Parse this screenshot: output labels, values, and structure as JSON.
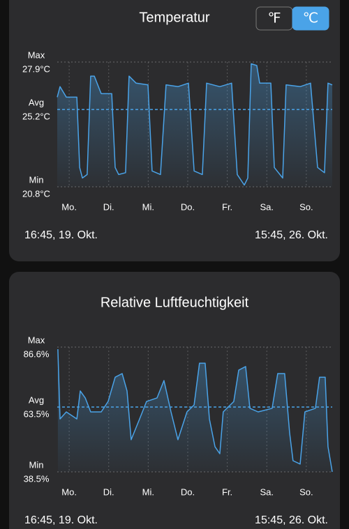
{
  "chart_data": [
    {
      "type": "line",
      "title": "Temperatur",
      "unit_options": [
        "℉",
        "℃"
      ],
      "selected_unit": 1,
      "color": "#4aa3e8",
      "x": [
        0,
        1.7,
        5.5,
        11.9,
        13.6,
        15.3,
        18.2,
        20.3,
        22.5,
        26.7,
        33.1,
        35.2,
        37.3,
        41.5,
        43.6,
        47.9,
        55.1,
        57.6,
        62.7,
        66.1,
        73.3,
        79.7,
        83.1,
        88.1,
        90.7,
        98.7,
        105.9,
        109.3,
        113.6,
        115.7,
        117.8,
        121.2,
        122.9,
        129.7,
        131.8,
        136.9,
        139,
        147.5,
        153.8,
        158.1,
        162.3,
        164.4,
        167
      ],
      "values": [
        25.9,
        26.5,
        25.9,
        25.9,
        21.9,
        21.3,
        21.5,
        27.1,
        27.1,
        26.1,
        26.1,
        21.9,
        21.5,
        21.6,
        27.1,
        26.7,
        26.6,
        21.7,
        21.5,
        26.6,
        26.5,
        26.7,
        21.7,
        21.5,
        26.7,
        26.5,
        26.7,
        21.5,
        20.9,
        21.3,
        27.8,
        27.7,
        26.7,
        26.7,
        21.9,
        21.3,
        26.6,
        26.5,
        26.7,
        21.9,
        21.6,
        26.7,
        26.6
      ],
      "xlim": [
        0,
        167
      ],
      "xticks": [
        {
          "value": 7.25,
          "label": "Mo."
        },
        {
          "value": 31.25,
          "label": "Di."
        },
        {
          "value": 55.25,
          "label": "Mi."
        },
        {
          "value": 79.25,
          "label": "Do."
        },
        {
          "value": 103.25,
          "label": "Fr."
        },
        {
          "value": 127.25,
          "label": "Sa."
        },
        {
          "value": 151.25,
          "label": "So."
        }
      ],
      "ylim": [
        20.8,
        27.9
      ],
      "yticks": [
        {
          "value": 27.9,
          "label": "27.9°C",
          "name": "Max"
        },
        {
          "value": 20.8,
          "label": "20.8°C",
          "name": "Min"
        }
      ],
      "avg": {
        "value": 25.2,
        "label": "25.2°C",
        "name": "Avg"
      },
      "start_label": "16:45, 19. Okt.",
      "end_label": "15:45, 26. Okt."
    },
    {
      "type": "line",
      "title": "Relative Luftfeuchtigkeit",
      "color": "#4aa3e8",
      "x": [
        0.4,
        1.7,
        5.5,
        11.9,
        14,
        17,
        20.3,
        26.7,
        30.9,
        35.2,
        39.4,
        42.4,
        44.9,
        50,
        54.2,
        60.6,
        64.8,
        69.1,
        73.3,
        78.8,
        83.1,
        86.4,
        89.8,
        92.4,
        95.8,
        98.7,
        100.8,
        107.2,
        110.2,
        114.4,
        117,
        122,
        130.5,
        133.9,
        138.1,
        141.1,
        143.2,
        147.5,
        150.4,
        156.8,
        159.3,
        162.7,
        164.4,
        167
      ],
      "values": [
        85.8,
        58.9,
        61.6,
        58.9,
        69.7,
        67,
        61.6,
        61.6,
        65.6,
        75,
        76.4,
        69.7,
        50.9,
        58.9,
        65.6,
        67,
        73.7,
        61.6,
        50.9,
        61.6,
        64.3,
        80.4,
        80.4,
        58.9,
        48.2,
        45.5,
        61.6,
        65.6,
        77.7,
        79.1,
        63,
        61.6,
        63,
        76.4,
        76.4,
        53.6,
        42.8,
        41.5,
        61.6,
        63,
        75,
        75,
        48.2,
        38.5
      ],
      "xlim": [
        0,
        167
      ],
      "xticks": [
        {
          "value": 7.25,
          "label": "Mo."
        },
        {
          "value": 31.25,
          "label": "Di."
        },
        {
          "value": 55.25,
          "label": "Mi."
        },
        {
          "value": 79.25,
          "label": "Do."
        },
        {
          "value": 103.25,
          "label": "Fr."
        },
        {
          "value": 127.25,
          "label": "Sa."
        },
        {
          "value": 151.25,
          "label": "So."
        }
      ],
      "ylim": [
        38.5,
        86.6
      ],
      "yticks": [
        {
          "value": 86.6,
          "label": "86.6%",
          "name": "Max"
        },
        {
          "value": 38.5,
          "label": "38.5%",
          "name": "Min"
        }
      ],
      "avg": {
        "value": 63.5,
        "label": "63.5%",
        "name": "Avg"
      },
      "start_label": "16:45, 19. Okt.",
      "end_label": "15:45, 26. Okt."
    }
  ]
}
